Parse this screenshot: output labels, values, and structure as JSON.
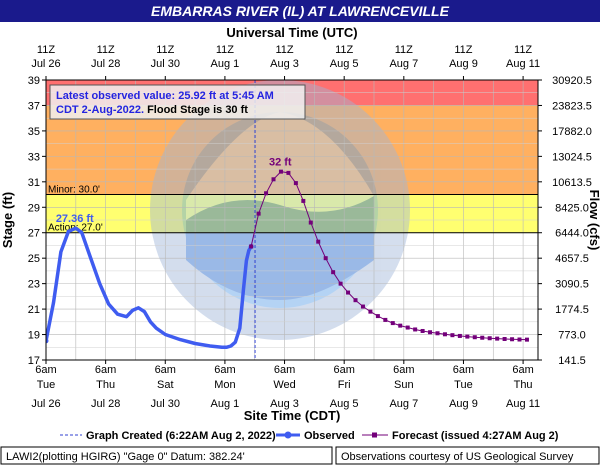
{
  "header": {
    "title": "EMBARRAS RIVER (IL) AT LAWRENCEVILLE"
  },
  "top_axis": {
    "title": "Universal Time (UTC)",
    "ticks": [
      {
        "l1": "11Z",
        "l2": "Jul 26"
      },
      {
        "l1": "11Z",
        "l2": "Jul 28"
      },
      {
        "l1": "11Z",
        "l2": "Jul 30"
      },
      {
        "l1": "11Z",
        "l2": "Aug 1"
      },
      {
        "l1": "11Z",
        "l2": "Aug 3"
      },
      {
        "l1": "11Z",
        "l2": "Aug 5"
      },
      {
        "l1": "11Z",
        "l2": "Aug 7"
      },
      {
        "l1": "11Z",
        "l2": "Aug 9"
      },
      {
        "l1": "11Z",
        "l2": "Aug 11"
      }
    ]
  },
  "bottom_axis": {
    "title": "Site Time (CDT)",
    "ticks": [
      {
        "l1": "6am",
        "l2": "Tue",
        "l3": "Jul 26"
      },
      {
        "l1": "6am",
        "l2": "Thu",
        "l3": "Jul 28"
      },
      {
        "l1": "6am",
        "l2": "Sat",
        "l3": "Jul 30"
      },
      {
        "l1": "6am",
        "l2": "Mon",
        "l3": "Aug 1"
      },
      {
        "l1": "6am",
        "l2": "Wed",
        "l3": "Aug 3"
      },
      {
        "l1": "6am",
        "l2": "Fri",
        "l3": "Aug 5"
      },
      {
        "l1": "6am",
        "l2": "Sun",
        "l3": "Aug 7"
      },
      {
        "l1": "6am",
        "l2": "Tue",
        "l3": "Aug 9"
      },
      {
        "l1": "6am",
        "l2": "Thu",
        "l3": "Aug 11"
      }
    ]
  },
  "left_axis": {
    "title": "Stage (ft)",
    "ticks": [
      17,
      19,
      21,
      23,
      25,
      27,
      29,
      31,
      33,
      35,
      37,
      39
    ]
  },
  "right_axis": {
    "title": "Flow (cfs)",
    "ticks": [
      "141.5",
      "773.0",
      "1774.5",
      "3090.5",
      "4657.5",
      "6444.0",
      "8425.0",
      "10613.5",
      "13024.5",
      "17882.0",
      "23823.5",
      "30920.5"
    ]
  },
  "info_box": {
    "line1": "Latest observed value: 25.92 ft at 5:45 AM",
    "line2_blue": "CDT 2-Aug-2022.",
    "line2_black": " Flood Stage is 30 ft"
  },
  "thresholds": {
    "minor": {
      "label": "Minor: 30.0'",
      "value": 30.0
    },
    "action": {
      "label": "Action: 27.0'",
      "value": 27.0
    }
  },
  "annotations": {
    "observed_peak": "27.36 ft",
    "forecast_peak": "32 ft"
  },
  "legend": {
    "created": "Graph Created (6:22AM Aug 2, 2022)",
    "observed": "Observed",
    "forecast": "Forecast (issued 4:27AM Aug 2)"
  },
  "footer": {
    "left": "LAWI2(plotting HGIRG) \"Gage 0\" Datum: 382.24'",
    "right": "Observations courtesy of US Geological Survey"
  },
  "colors": {
    "title_bg": "#1a1a8c",
    "band_major": "#ff7070",
    "band_moderate": "#ffb060",
    "band_minor": "#ffff70",
    "observed": "#3f5cf0",
    "forecast": "#73007a",
    "info_text": "#2424e0"
  },
  "chart_data": {
    "type": "line",
    "x_unit": "days since Jul 26 6am CDT",
    "xlim": [
      0,
      16.5
    ],
    "ylim": [
      17,
      39
    ],
    "ylabel": "Stage (ft)",
    "y2label": "Flow (cfs)",
    "grid": true,
    "created_marker_x": 7.01,
    "series": [
      {
        "name": "Observed",
        "style": "line",
        "x": [
          0,
          0.25,
          0.5,
          0.75,
          1.0,
          1.2,
          1.5,
          1.8,
          2.1,
          2.4,
          2.7,
          2.9,
          3.1,
          3.3,
          3.5,
          3.7,
          4.0,
          4.5,
          5.0,
          5.5,
          5.9,
          6.05,
          6.2,
          6.35,
          6.5,
          6.62,
          6.72,
          6.8,
          6.88
        ],
        "y": [
          18.5,
          21.5,
          25.5,
          27.1,
          27.36,
          27.0,
          25.0,
          23.0,
          21.4,
          20.6,
          20.4,
          20.9,
          21.1,
          20.8,
          20.0,
          19.5,
          19.0,
          18.6,
          18.3,
          18.1,
          18.0,
          18.0,
          18.1,
          18.4,
          19.5,
          22.5,
          24.8,
          25.6,
          25.92
        ]
      },
      {
        "name": "Forecast",
        "style": "line+square",
        "x": [
          6.88,
          7.13,
          7.38,
          7.63,
          7.88,
          8.13,
          8.38,
          8.63,
          8.88,
          9.13,
          9.38,
          9.63,
          9.88,
          10.13,
          10.38,
          10.63,
          10.88,
          11.13,
          11.38,
          11.63,
          11.88,
          12.13,
          12.38,
          12.63,
          12.88,
          13.13,
          13.38,
          13.63,
          13.88,
          14.13,
          14.38,
          14.63,
          14.88,
          15.13,
          15.38,
          15.63,
          15.88,
          16.13
        ],
        "y": [
          25.92,
          28.5,
          30.1,
          31.2,
          31.8,
          31.7,
          30.9,
          29.5,
          27.8,
          26.3,
          25.0,
          23.9,
          23.0,
          22.3,
          21.7,
          21.2,
          20.8,
          20.45,
          20.15,
          19.9,
          19.7,
          19.55,
          19.4,
          19.28,
          19.18,
          19.1,
          19.02,
          18.95,
          18.89,
          18.84,
          18.79,
          18.75,
          18.71,
          18.68,
          18.65,
          18.63,
          18.61,
          18.6
        ]
      }
    ]
  }
}
